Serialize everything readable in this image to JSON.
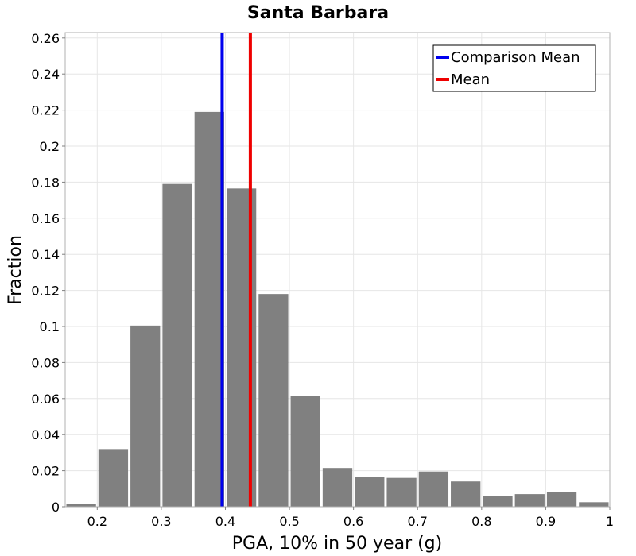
{
  "chart_data": {
    "type": "bar",
    "title": "Santa Barbara",
    "xlabel": "PGA, 10% in 50 year (g)",
    "ylabel": "Fraction",
    "xlim": [
      0.15,
      1.0
    ],
    "ylim": [
      0,
      0.263
    ],
    "grid": true,
    "legend_position": "top-right",
    "bin_width": 0.05,
    "bars": [
      {
        "x": 0.175,
        "value": 0.0015
      },
      {
        "x": 0.225,
        "value": 0.032
      },
      {
        "x": 0.275,
        "value": 0.1005
      },
      {
        "x": 0.325,
        "value": 0.179
      },
      {
        "x": 0.375,
        "value": 0.219
      },
      {
        "x": 0.425,
        "value": 0.1765
      },
      {
        "x": 0.475,
        "value": 0.118
      },
      {
        "x": 0.525,
        "value": 0.0615
      },
      {
        "x": 0.575,
        "value": 0.0215
      },
      {
        "x": 0.625,
        "value": 0.0165
      },
      {
        "x": 0.675,
        "value": 0.016
      },
      {
        "x": 0.725,
        "value": 0.0195
      },
      {
        "x": 0.775,
        "value": 0.014
      },
      {
        "x": 0.825,
        "value": 0.006
      },
      {
        "x": 0.875,
        "value": 0.007
      },
      {
        "x": 0.925,
        "value": 0.008
      },
      {
        "x": 0.975,
        "value": 0.0025
      }
    ],
    "bar_color": "#808080",
    "lines": [
      {
        "name": "Comparison Mean",
        "x": 0.395,
        "color": "#0000ee"
      },
      {
        "name": "Mean",
        "x": 0.439,
        "color": "#ee0000"
      }
    ],
    "x_ticks": [
      {
        "value": 0.2,
        "label": "0.2"
      },
      {
        "value": 0.3,
        "label": "0.3"
      },
      {
        "value": 0.4,
        "label": "0.4"
      },
      {
        "value": 0.5,
        "label": "0.5"
      },
      {
        "value": 0.6,
        "label": "0.6"
      },
      {
        "value": 0.7,
        "label": "0.7"
      },
      {
        "value": 0.8,
        "label": "0.8"
      },
      {
        "value": 0.9,
        "label": "0.9"
      },
      {
        "value": 1.0,
        "label": "1"
      }
    ],
    "y_ticks": [
      {
        "value": 0,
        "label": "0"
      },
      {
        "value": 0.02,
        "label": "0.02"
      },
      {
        "value": 0.04,
        "label": "0.04"
      },
      {
        "value": 0.06,
        "label": "0.06"
      },
      {
        "value": 0.08,
        "label": "0.08"
      },
      {
        "value": 0.1,
        "label": "0.1"
      },
      {
        "value": 0.12,
        "label": "0.12"
      },
      {
        "value": 0.14,
        "label": "0.14"
      },
      {
        "value": 0.16,
        "label": "0.16"
      },
      {
        "value": 0.18,
        "label": "0.18"
      },
      {
        "value": 0.2,
        "label": "0.2"
      },
      {
        "value": 0.22,
        "label": "0.22"
      },
      {
        "value": 0.24,
        "label": "0.24"
      },
      {
        "value": 0.26,
        "label": "0.26"
      }
    ]
  }
}
